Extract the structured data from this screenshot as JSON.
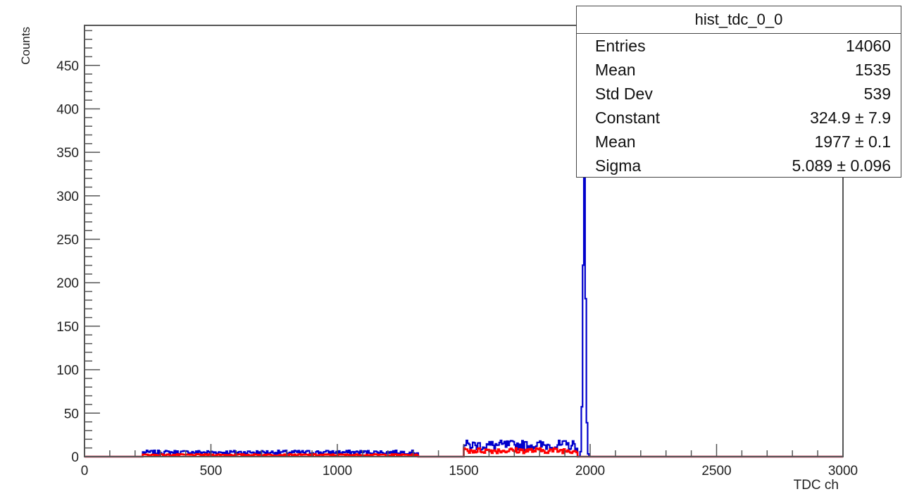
{
  "chart_data": {
    "type": "histogram",
    "title": "",
    "xlabel": "TDC ch",
    "ylabel": "Counts",
    "xlim": [
      0,
      3000
    ],
    "ylim": [
      0,
      496
    ],
    "x_ticks": [
      0,
      500,
      1000,
      1500,
      2000,
      2500,
      3000
    ],
    "y_ticks": [
      0,
      50,
      100,
      150,
      200,
      250,
      300,
      350,
      400,
      450
    ],
    "grid": false,
    "series": [
      {
        "color": "#0000cc",
        "segments": [
          {
            "x_range": [
              230,
              1320
            ],
            "approx_count": 5
          },
          {
            "x_range": [
              1500,
              1950
            ],
            "approx_count": 13
          }
        ],
        "peak": {
          "x": 1977,
          "y": 325
        }
      },
      {
        "color": "#ff0000",
        "segments": [
          {
            "x_range": [
              230,
              1320
            ],
            "approx_count": 2
          },
          {
            "x_range": [
              1500,
              1950
            ],
            "approx_count": 7
          }
        ]
      }
    ],
    "stats_box": {
      "title": "hist_tdc_0_0",
      "rows": [
        {
          "label": "Entries",
          "value": "14060"
        },
        {
          "label": "Mean",
          "value": "1535"
        },
        {
          "label": "Std Dev",
          "value": "539"
        },
        {
          "label": "Constant",
          "value": "324.9 ± 7.9"
        },
        {
          "label": "Mean",
          "value": "1977 ± 0.1"
        },
        {
          "label": "Sigma",
          "value": "5.089 ± 0.096"
        }
      ]
    }
  }
}
